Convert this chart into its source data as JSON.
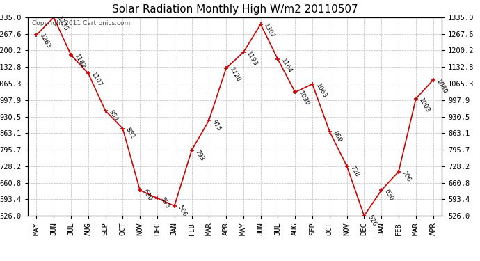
{
  "months": [
    "MAY",
    "JUN",
    "JUL",
    "AUG",
    "SEP",
    "OCT",
    "NOV",
    "DEC",
    "JAN",
    "FEB",
    "MAR",
    "APR",
    "MAY",
    "JUN",
    "JUL",
    "AUG",
    "SEP",
    "OCT",
    "NOV",
    "DEC",
    "JAN",
    "FEB",
    "MAR",
    "APR"
  ],
  "values": [
    1263,
    1335,
    1182,
    1107,
    954,
    882,
    630,
    598,
    566,
    793,
    915,
    1128,
    1193,
    1307,
    1164,
    1030,
    1063,
    869,
    728,
    526,
    630,
    706,
    1003,
    1080
  ],
  "title": "Solar Radiation Monthly High W/m2 20110507",
  "watermark": "Copyright 2011 Cartronics.com",
  "y_min": 526.0,
  "y_max": 1335.0,
  "y_ticks": [
    526.0,
    593.4,
    660.8,
    728.2,
    795.7,
    863.1,
    930.5,
    997.9,
    1065.3,
    1132.8,
    1200.2,
    1267.6,
    1335.0
  ],
  "line_color": "#cc0000",
  "marker_color": "#cc0000",
  "bg_color": "#ffffff",
  "grid_color": "#bbbbbb",
  "label_fontsize": 6.5,
  "title_fontsize": 11,
  "tick_fontsize": 7.5,
  "watermark_fontsize": 6.5
}
